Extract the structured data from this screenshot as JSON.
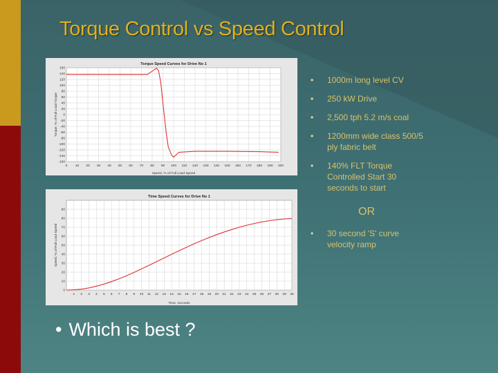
{
  "slide": {
    "title": "Torque Control vs Speed Control",
    "bullets_top": [
      "1000m long level CV",
      "250 kW Drive",
      "2,500 tph 5.2 m/s coal",
      "1200mm wide class 500/5 ply fabric belt",
      "140% FLT Torque Controlled Start 30 seconds to start"
    ],
    "or_label": "OR",
    "bullets_bottom": [
      "30 second 'S' curve velocity ramp"
    ],
    "question": "Which is best ?",
    "bullet_glyph": "•"
  },
  "colors": {
    "title": "#e0b020",
    "bullet_text": "#d9c26a",
    "bar_top": "#c99a1e",
    "bar_bottom": "#8c0a0a",
    "curve": "#e03030"
  },
  "chart_data": [
    {
      "type": "line",
      "title": "Torque Speed Curves for Drive No 1",
      "xlabel": "Speed, % of Full Load Speed",
      "ylabel": "Torque, % of Full Load Torque",
      "xlim": [
        0,
        200
      ],
      "ylim": [
        -160,
        160
      ],
      "xticks": [
        0,
        10,
        20,
        30,
        40,
        50,
        60,
        70,
        80,
        90,
        100,
        110,
        120,
        130,
        140,
        150,
        160,
        170,
        180,
        190,
        200
      ],
      "yticks": [
        160,
        140,
        120,
        100,
        80,
        60,
        40,
        20,
        0,
        -20,
        -40,
        -60,
        -80,
        -100,
        -120,
        -140,
        -160
      ],
      "grid": true,
      "series": [
        {
          "x": [
            0,
            2,
            5,
            10,
            20,
            40,
            60,
            75,
            76,
            80,
            84,
            86,
            88,
            90,
            93,
            95,
            98,
            100,
            105,
            120,
            150,
            180,
            198
          ],
          "y": [
            138,
            137,
            137,
            137,
            137,
            137,
            137,
            137,
            138,
            148,
            158,
            150,
            110,
            40,
            -60,
            -110,
            -137,
            -145,
            -128,
            -125,
            -125,
            -126,
            -128
          ]
        }
      ]
    },
    {
      "type": "line",
      "title": "Time Speed Curves for Drive No 1",
      "xlabel": "Time, seconds",
      "ylabel": "Speed, % of Full Load Speed",
      "xlim": [
        0,
        30
      ],
      "ylim": [
        0,
        100
      ],
      "xticks": [
        1,
        2,
        3,
        4,
        5,
        6,
        7,
        8,
        9,
        10,
        11,
        12,
        13,
        14,
        15,
        16,
        17,
        18,
        19,
        20,
        21,
        22,
        23,
        24,
        25,
        26,
        27,
        28,
        29,
        30
      ],
      "yticks": [
        0,
        10,
        20,
        30,
        40,
        50,
        60,
        70,
        80,
        90
      ],
      "grid": true,
      "series": [
        {
          "x": [
            0,
            1,
            2,
            3,
            4,
            5,
            6,
            7,
            8,
            9,
            10,
            11,
            12,
            13,
            14,
            15,
            16,
            17,
            18,
            19,
            20,
            21,
            22,
            23,
            24,
            25,
            26,
            27,
            28,
            29,
            30
          ],
          "y": [
            0,
            0.3,
            1.1,
            2.5,
            4.4,
            6.7,
            9.5,
            12.6,
            16.0,
            19.7,
            23.6,
            27.6,
            31.7,
            35.8,
            39.9,
            43.9,
            47.8,
            51.6,
            55.2,
            58.6,
            61.8,
            64.8,
            67.5,
            70.0,
            72.2,
            74.2,
            75.9,
            77.3,
            78.4,
            79.2,
            79.7
          ]
        }
      ]
    }
  ]
}
